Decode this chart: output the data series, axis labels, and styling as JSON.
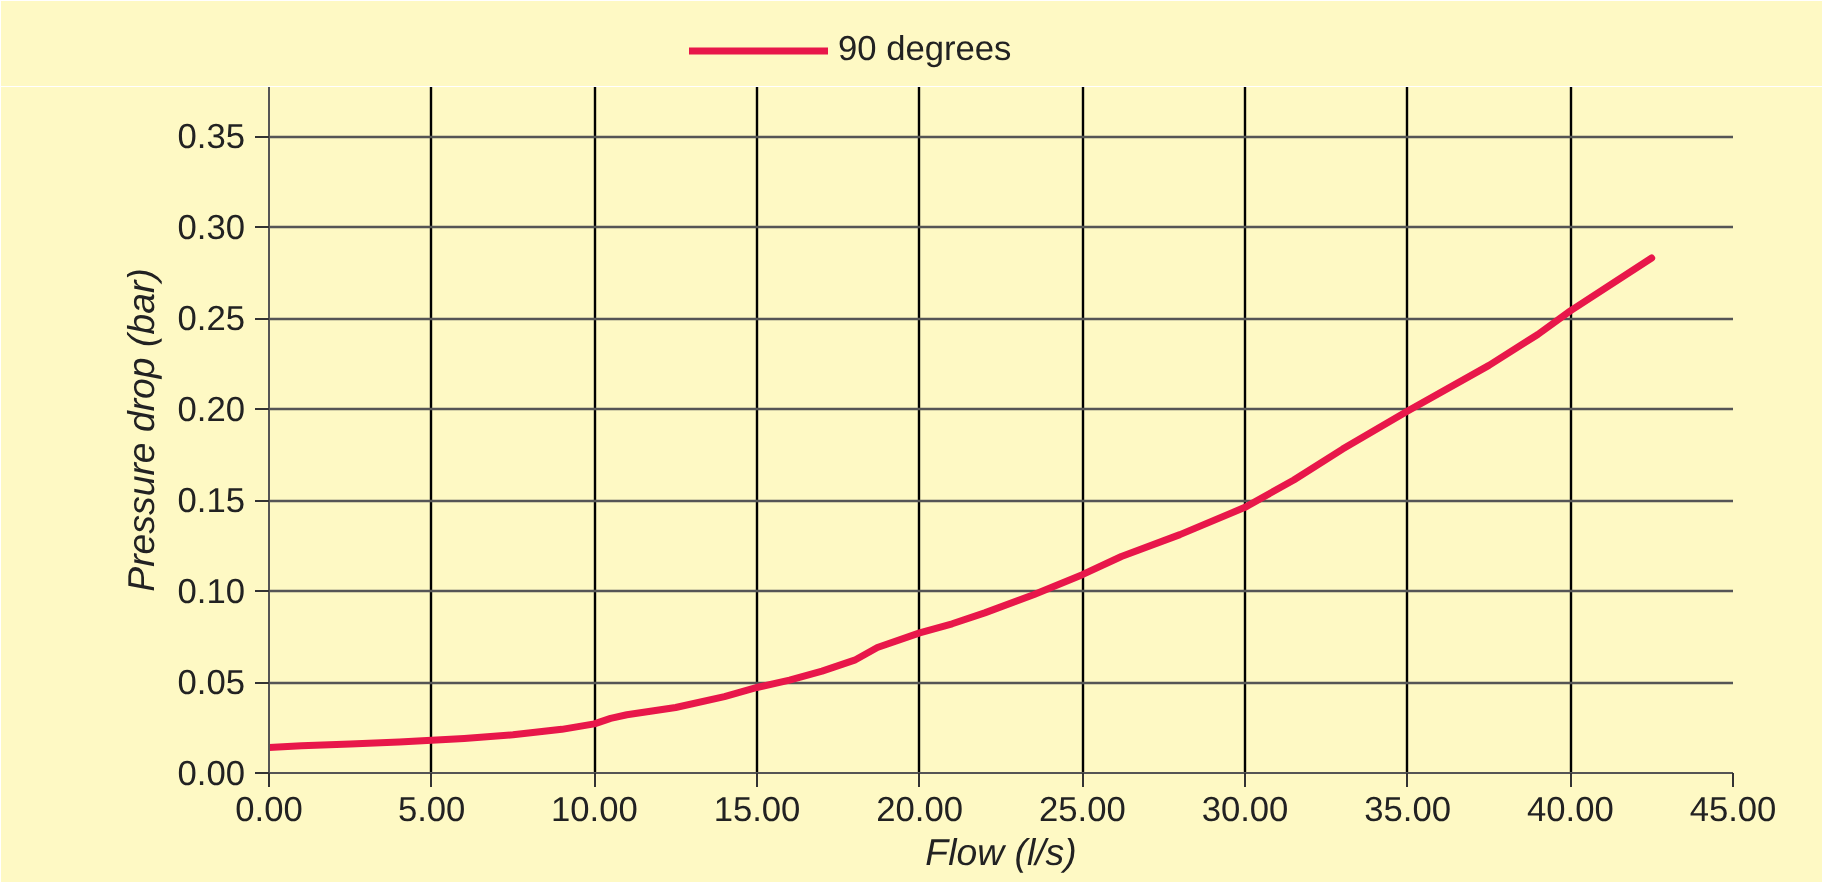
{
  "chart_data": {
    "type": "line",
    "xlabel": "Flow (l/s)",
    "ylabel": "Pressure drop (bar)",
    "x": [
      0,
      1,
      2.5,
      4,
      5,
      6,
      7.5,
      9,
      10,
      10.5,
      11,
      12.5,
      14,
      15,
      16,
      17,
      18,
      18.7,
      20,
      21,
      22,
      23.5,
      25,
      26.2,
      28,
      30,
      31.5,
      33,
      35,
      37.5,
      39,
      40,
      42.5
    ],
    "series": [
      {
        "name": "90 degrees",
        "color": "#e8174a",
        "values": [
          0.014,
          0.015,
          0.016,
          0.017,
          0.018,
          0.019,
          0.021,
          0.024,
          0.027,
          0.03,
          0.032,
          0.036,
          0.042,
          0.047,
          0.051,
          0.056,
          0.062,
          0.069,
          0.077,
          0.082,
          0.088,
          0.098,
          0.109,
          0.119,
          0.131,
          0.146,
          0.161,
          0.178,
          0.199,
          0.224,
          0.241,
          0.254,
          0.283
        ]
      }
    ],
    "xlim": [
      0,
      45
    ],
    "ylim": [
      0,
      0.377
    ],
    "xticks": [
      {
        "value": 0,
        "label": "0.00"
      },
      {
        "value": 5,
        "label": "5.00"
      },
      {
        "value": 10,
        "label": "10.00"
      },
      {
        "value": 15,
        "label": "15.00"
      },
      {
        "value": 20,
        "label": "20.00"
      },
      {
        "value": 25,
        "label": "25.00"
      },
      {
        "value": 30,
        "label": "30.00"
      },
      {
        "value": 35,
        "label": "35.00"
      },
      {
        "value": 40,
        "label": "40.00"
      },
      {
        "value": 45,
        "label": "45.00"
      }
    ],
    "yticks": [
      {
        "value": 0,
        "label": "0.00"
      },
      {
        "value": 0.05,
        "label": "0.05"
      },
      {
        "value": 0.1,
        "label": "0.10"
      },
      {
        "value": 0.15,
        "label": "0.15"
      },
      {
        "value": 0.2,
        "label": "0.20"
      },
      {
        "value": 0.25,
        "label": "0.25"
      },
      {
        "value": 0.3,
        "label": "0.30"
      },
      {
        "value": 0.35,
        "label": "0.35"
      }
    ],
    "grid": true,
    "legend": "top",
    "marker": "none",
    "line_style": "solid"
  }
}
